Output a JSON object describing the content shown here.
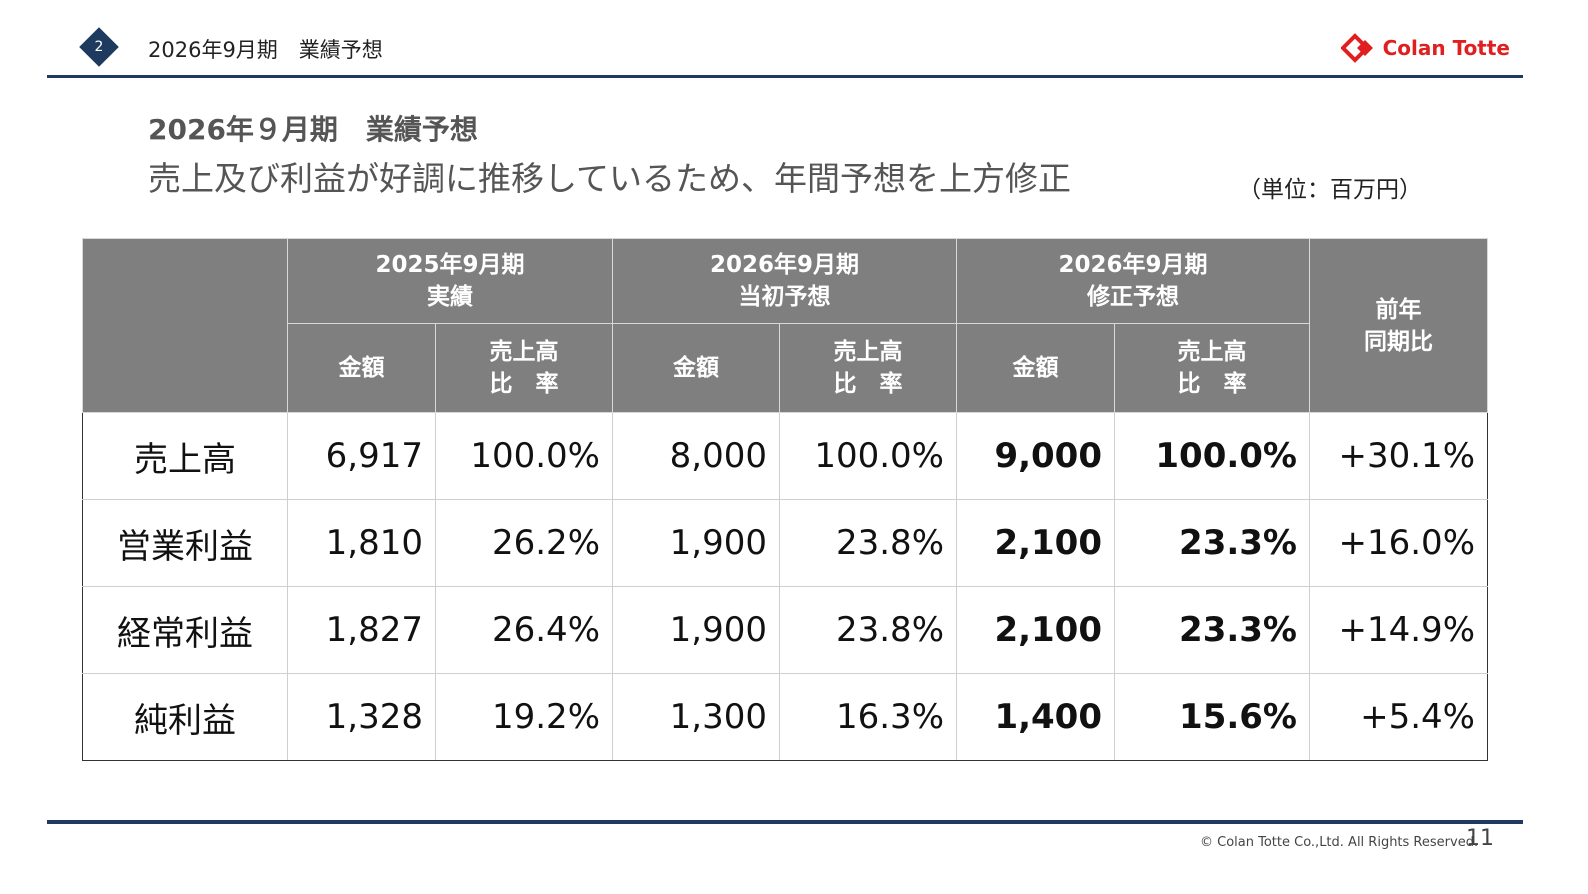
{
  "header": {
    "slide_number": "2",
    "title": "2026年9月期　業績予想",
    "logo_text": "Colan Totte",
    "accent_color": "#1f3a5f",
    "logo_color": "#e02020"
  },
  "content": {
    "heading": "2026年９月期　業績予想",
    "subheading": "売上及び利益が好調に推移しているため、年間予想を上方修正",
    "unit": "（単位：百万円）"
  },
  "table": {
    "groups": [
      {
        "line1": "2025年9月期",
        "line2": "実績"
      },
      {
        "line1": "2026年9月期",
        "line2": "当初予想"
      },
      {
        "line1": "2026年9月期",
        "line2": "修正予想"
      }
    ],
    "yoy": {
      "line1": "前年",
      "line2": "同期比"
    },
    "amount_label": "金額",
    "ratio_label": {
      "line1": "売上高",
      "line2": "比　率"
    },
    "rows": [
      {
        "label": "売上高",
        "values": [
          "6,917",
          "100.0%",
          "8,000",
          "100.0%",
          "9,000",
          "100.0%",
          "+30.1%"
        ]
      },
      {
        "label": "営業利益",
        "values": [
          "1,810",
          "26.2%",
          "1,900",
          "23.8%",
          "2,100",
          "23.3%",
          "+16.0%"
        ]
      },
      {
        "label": "経常利益",
        "values": [
          "1,827",
          "26.4%",
          "1,900",
          "23.8%",
          "2,100",
          "23.3%",
          "+14.9%"
        ]
      },
      {
        "label": "純利益",
        "values": [
          "1,328",
          "19.2%",
          "1,300",
          "16.3%",
          "1,400",
          "15.6%",
          "+5.4%"
        ]
      }
    ]
  },
  "footer": {
    "copyright": "© Colan Totte Co.,Ltd. All Rights Reserved.",
    "page_number": "11"
  }
}
